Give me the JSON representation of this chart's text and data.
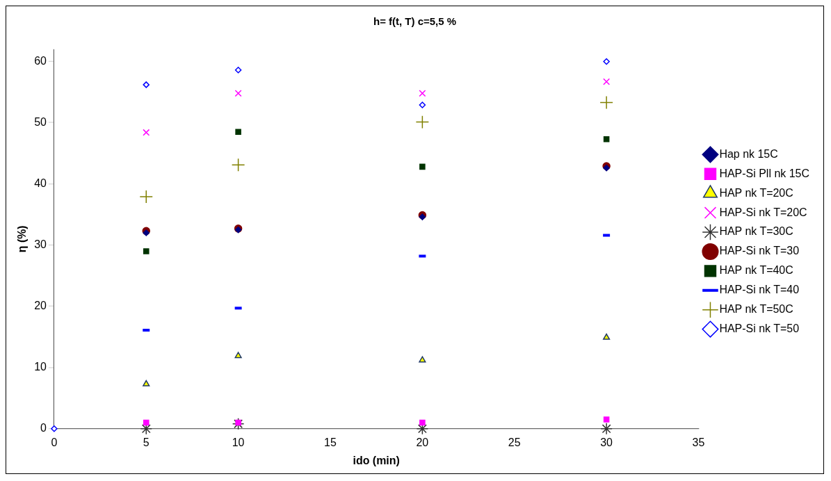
{
  "chart_data": {
    "type": "scatter",
    "title": "h= f(t, T) c=5,5 %",
    "xlabel": "ido (min)",
    "ylabel": "η (%)",
    "xlim": [
      0,
      35
    ],
    "xticks": [
      0,
      5,
      10,
      15,
      20,
      25,
      30,
      35
    ],
    "ylim": [
      0,
      62
    ],
    "yticks": [
      0,
      10,
      20,
      30,
      40,
      50,
      60
    ],
    "grid": false,
    "legend": "right",
    "series": [
      {
        "name": "Hap nk 15C",
        "color": "#000080",
        "x": [
          5,
          10,
          20,
          30
        ],
        "values": [
          32,
          32.5,
          34.6,
          42.6
        ]
      },
      {
        "name": "HAP-Si Pll nk 15C",
        "color": "#ff00ff",
        "x": [
          5,
          10,
          20,
          30
        ],
        "values": [
          1,
          1,
          1,
          1.5
        ]
      },
      {
        "name": "HAP nk T=20C",
        "color": "#ffff00",
        "x": [
          5,
          10,
          20,
          30
        ],
        "values": [
          7.3,
          11.9,
          11.2,
          14.9
        ]
      },
      {
        "name": "HAP-Si nk T=20C",
        "color": "#ff00ff",
        "x": [
          5,
          10,
          20,
          30
        ],
        "values": [
          48.4,
          54.8,
          54.8,
          56.7
        ]
      },
      {
        "name": "HAP nk T=30C",
        "color": "#333333",
        "x": [
          5,
          10,
          20,
          30
        ],
        "values": [
          0,
          0.8,
          0,
          0
        ]
      },
      {
        "name": "HAP-Si nk T=30",
        "color": "#800000",
        "x": [
          5,
          10,
          20,
          30
        ],
        "values": [
          32.3,
          32.7,
          34.9,
          42.9
        ]
      },
      {
        "name": "HAP nk T=40C",
        "color": "#003300",
        "x": [
          5,
          10,
          20,
          30
        ],
        "values": [
          29,
          48.5,
          42.8,
          47.3
        ]
      },
      {
        "name": "HAP-Si nk T=40",
        "color": "#0000ff",
        "x": [
          5,
          10,
          20,
          30
        ],
        "values": [
          16.1,
          19.7,
          28.2,
          31.6
        ]
      },
      {
        "name": "HAP nk T=50C",
        "color": "#808000",
        "x": [
          5,
          10,
          20,
          30
        ],
        "values": [
          37.9,
          43.1,
          50.1,
          53.3
        ]
      },
      {
        "name": "HAP-Si nk T=50",
        "color": "#0000ff",
        "x": [
          0,
          5,
          10,
          20,
          30
        ],
        "values": [
          0,
          56.2,
          58.6,
          52.9,
          60
        ]
      }
    ]
  }
}
